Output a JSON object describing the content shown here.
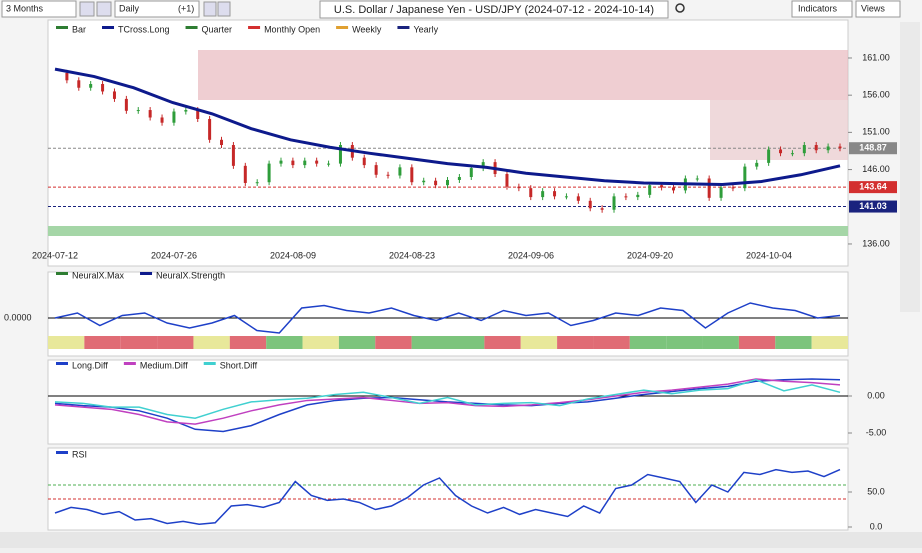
{
  "toolbar": {
    "period": "3 Months",
    "interval": "Daily",
    "offset": "(+1)",
    "title": "U.S. Dollar / Japanese Yen - USD/JPY (2024-07-12 - 2024-10-14)",
    "indicators": "Indicators",
    "views": "Views"
  },
  "main": {
    "legend": [
      "Bar",
      "TCross.Long",
      "Quarter",
      "Monthly Open",
      "Weekly",
      "Yearly"
    ],
    "ylim": [
      135,
      163
    ],
    "yticks": [
      {
        "value": 161,
        "label": "161.00"
      },
      {
        "value": 156,
        "label": "156.00"
      },
      {
        "value": 151,
        "label": "151.00"
      },
      {
        "value": 146,
        "label": "146.00"
      },
      {
        "value": 136,
        "label": "136.00"
      }
    ],
    "dates": [
      "2024-07-12",
      "2024-07-26",
      "2024-08-09",
      "2024-08-23",
      "2024-09-06",
      "2024-09-20",
      "2024-10-04"
    ],
    "price_labels": [
      {
        "value": 148.87,
        "label": "148.87",
        "color": "#888888"
      },
      {
        "value": 143.64,
        "label": "143.64",
        "color": "#d32f2f"
      },
      {
        "value": 141.03,
        "label": "141.03",
        "color": "#1a237e"
      }
    ],
    "close": [
      159.0,
      158.0,
      157.0,
      157.5,
      156.5,
      155.5,
      153.9,
      154.0,
      153.0,
      152.3,
      153.8,
      154.0,
      152.8,
      150.0,
      149.3,
      146.5,
      144.2,
      144.3,
      146.8,
      147.2,
      146.6,
      147.2,
      146.8,
      146.8,
      149.3,
      147.6,
      146.6,
      145.3,
      145.2,
      146.3,
      144.3,
      144.5,
      143.9,
      144.6,
      145.0,
      146.2,
      147.0,
      145.4,
      143.7,
      143.5,
      142.3,
      143.1,
      142.4,
      142.4,
      141.8,
      140.8,
      140.6,
      142.4,
      142.3,
      142.6,
      143.9,
      143.6,
      143.2,
      144.8,
      144.8,
      142.2,
      143.6,
      143.5,
      146.4,
      146.9,
      148.7,
      148.2,
      148.2,
      149.3,
      148.6,
      149.1,
      148.87
    ],
    "tcross": [
      159.5,
      158.5,
      157.0,
      155.0,
      153.5,
      151.5,
      150.0,
      149.0,
      148.2,
      147.5,
      146.8,
      146.3,
      145.5,
      145.0,
      144.5,
      144.2,
      144.1,
      144.0,
      144.4,
      145.3,
      146.5
    ]
  },
  "strength": {
    "legend": [
      "NeuralX.Max",
      "NeuralX.Strength"
    ],
    "ylim": [
      -1.2,
      1.2
    ],
    "yticks": [
      {
        "value": 0,
        "label": "0.0000"
      }
    ],
    "values": [
      0,
      0.2,
      -0.3,
      0.1,
      0.2,
      -0.2,
      -0.4,
      -0.2,
      0.1,
      -0.5,
      -0.6,
      0.4,
      0.5,
      0.3,
      0.2,
      0.4,
      0.1,
      -0.1,
      0.2,
      -0.1,
      0.3,
      0.1,
      0.2,
      -0.3,
      -0.1,
      0.2,
      0.1,
      0.4,
      0.3,
      -0.4,
      0.2,
      0.6,
      0.4,
      0.3,
      0,
      0.1
    ],
    "strip": [
      "#e8e89a",
      "#e06c75",
      "#e06c75",
      "#e06c75",
      "#e8e89a",
      "#e06c75",
      "#7cc47c",
      "#e8e89a",
      "#7cc47c",
      "#e06c75",
      "#7cc47c",
      "#7cc47c",
      "#e06c75",
      "#e8e89a",
      "#e06c75",
      "#e06c75",
      "#7cc47c",
      "#7cc47c",
      "#7cc47c",
      "#e06c75",
      "#7cc47c",
      "#e8e89a"
    ]
  },
  "diff": {
    "legend": [
      "Long.Diff",
      "Medium.Diff",
      "Short.Diff"
    ],
    "ylim": [
      -6,
      4.5
    ],
    "yticks": [
      {
        "value": 0,
        "label": "0.00"
      },
      {
        "value": -5,
        "label": "-5.00"
      }
    ],
    "series": [
      {
        "name": "Long.Diff",
        "color": "#1e40c8",
        "values": [
          -1,
          -1.3,
          -1.5,
          -2,
          -3,
          -4.5,
          -4.8,
          -4,
          -2.5,
          -1.2,
          -0.6,
          -0.3,
          -0.2,
          -0.5,
          -0.8,
          -1,
          -1.2,
          -1.3,
          -1,
          -0.8,
          -0.3,
          0.2,
          0.6,
          1,
          1.3,
          2,
          2.2,
          2.3,
          2.2
        ]
      },
      {
        "name": "Medium.Diff",
        "color": "#c040c0",
        "values": [
          -1.2,
          -1.5,
          -1.8,
          -2.5,
          -3.5,
          -3.8,
          -3,
          -2,
          -1.2,
          -0.6,
          -0.4,
          -0.2,
          -0.6,
          -1,
          -0.9,
          -1.3,
          -1.4,
          -1.2,
          -0.9,
          -0.5,
          0,
          0.5,
          0.8,
          1.2,
          1.6,
          2.3,
          2,
          1.8,
          1.5
        ]
      },
      {
        "name": "Short.Diff",
        "color": "#40d0d0",
        "values": [
          -0.8,
          -1,
          -1.5,
          -1.5,
          -2.5,
          -3,
          -1.8,
          -0.8,
          -0.5,
          -0.3,
          0.2,
          0.5,
          -0.2,
          -1,
          -0.2,
          -1.2,
          -1,
          -0.9,
          -1.3,
          -0.4,
          0.2,
          0.8,
          0.3,
          0.8,
          1,
          2.2,
          0.7,
          1.5,
          0.5
        ]
      }
    ]
  },
  "rsi": {
    "legend": [
      "RSI"
    ],
    "ylim": [
      -5,
      100
    ],
    "yticks": [
      {
        "value": 50,
        "label": "50.0"
      },
      {
        "value": 0,
        "label": "0.0"
      }
    ],
    "levels": [
      60,
      40
    ],
    "values": [
      20,
      28,
      25,
      18,
      22,
      10,
      12,
      5,
      8,
      4,
      6,
      30,
      32,
      28,
      35,
      65,
      45,
      38,
      40,
      35,
      25,
      30,
      42,
      60,
      70,
      45,
      30,
      20,
      28,
      18,
      25,
      20,
      15,
      30,
      20,
      55,
      60,
      75,
      70,
      65,
      35,
      60,
      50,
      78,
      75,
      82,
      78,
      80,
      72,
      82
    ]
  }
}
